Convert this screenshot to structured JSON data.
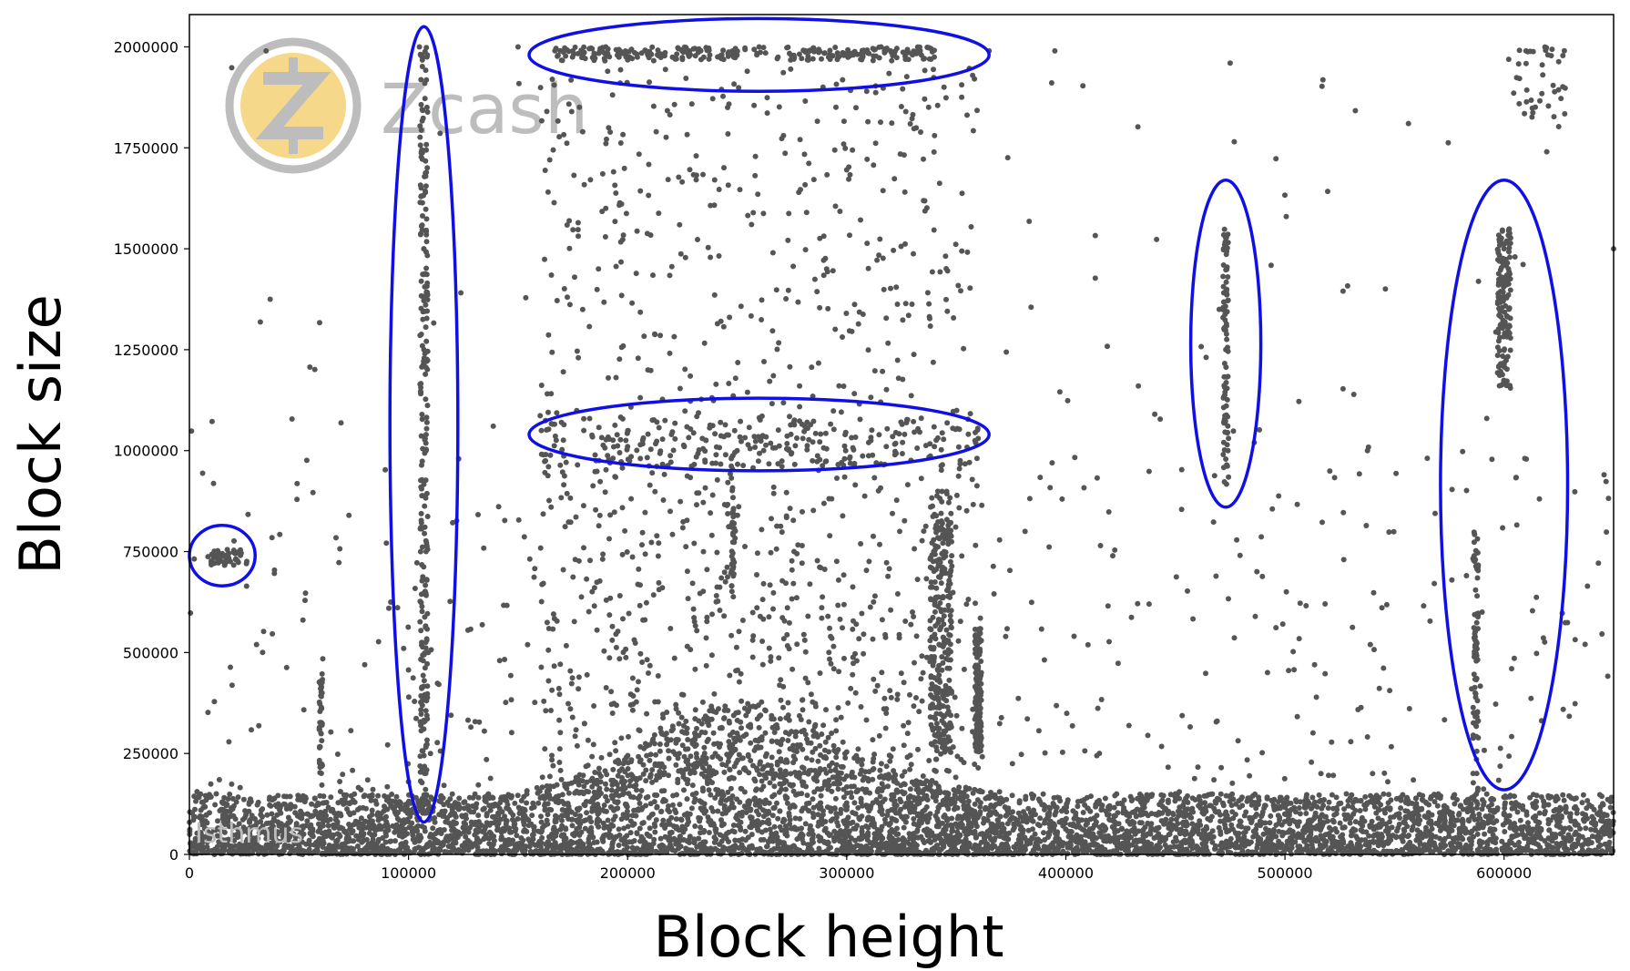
{
  "chart_data": {
    "type": "scatter",
    "title": "",
    "xlabel": "Block height",
    "ylabel": "Block size",
    "xlim": [
      0,
      650000
    ],
    "ylim": [
      0,
      2080000
    ],
    "x_ticks": [
      0,
      100000,
      200000,
      300000,
      400000,
      500000,
      600000
    ],
    "x_tick_labels": [
      "0",
      "100000",
      "200000",
      "300000",
      "400000",
      "500000",
      "600000"
    ],
    "y_ticks": [
      0,
      250000,
      500000,
      750000,
      1000000,
      1250000,
      1500000,
      1750000,
      2000000
    ],
    "y_tick_labels": [
      "0",
      "250000",
      "500000",
      "750000",
      "1000000",
      "1250000",
      "1500000",
      "1750000",
      "2000000"
    ],
    "grid": false,
    "legend": "none",
    "point_color": "#555555",
    "highlight_color": "#1010e6",
    "watermark": {
      "text": "Zcash",
      "coin_color": "#f5d889",
      "ring_color": "#bdbdbd"
    },
    "credit": "Isthmus",
    "sample_points": [
      [
        5000,
        95000
      ],
      [
        12000,
        740000
      ],
      [
        15000,
        745000
      ],
      [
        18000,
        730000
      ],
      [
        22000,
        748000
      ],
      [
        26000,
        720000
      ],
      [
        35000,
        1990000
      ],
      [
        60000,
        420000
      ],
      [
        60000,
        300000
      ],
      [
        80000,
        470000
      ],
      [
        100000,
        180000
      ],
      [
        105000,
        2000000
      ],
      [
        106000,
        1980000
      ],
      [
        107000,
        1500000
      ],
      [
        107000,
        1250000
      ],
      [
        108000,
        1000000
      ],
      [
        108000,
        750000
      ],
      [
        109000,
        500000
      ],
      [
        110000,
        250000
      ],
      [
        150000,
        2000000
      ],
      [
        175000,
        1990000
      ],
      [
        190000,
        2000000
      ],
      [
        210000,
        1980000
      ],
      [
        230000,
        1995000
      ],
      [
        260000,
        2000000
      ],
      [
        290000,
        1985000
      ],
      [
        320000,
        1990000
      ],
      [
        335000,
        1970000
      ],
      [
        180000,
        1050000
      ],
      [
        200000,
        1010000
      ],
      [
        220000,
        1040000
      ],
      [
        250000,
        1000000
      ],
      [
        280000,
        1030000
      ],
      [
        310000,
        1020000
      ],
      [
        340000,
        1010000
      ],
      [
        360000,
        1030000
      ],
      [
        240000,
        250000
      ],
      [
        250000,
        300000
      ],
      [
        270000,
        280000
      ],
      [
        330000,
        600000
      ],
      [
        345000,
        800000
      ],
      [
        360000,
        500000
      ],
      [
        365000,
        1990000
      ],
      [
        395000,
        1990000
      ],
      [
        472000,
        1500000
      ],
      [
        473000,
        1250000
      ],
      [
        474000,
        1000000
      ],
      [
        475000,
        1960000
      ],
      [
        470000,
        1350000
      ],
      [
        600000,
        1500000
      ],
      [
        602000,
        1450000
      ],
      [
        598000,
        1350000
      ],
      [
        605000,
        1480000
      ],
      [
        590000,
        600000
      ],
      [
        610000,
        1990000
      ],
      [
        620000,
        1980000
      ],
      [
        650000,
        1500000
      ],
      [
        540000,
        200000
      ],
      [
        450000,
        150000
      ],
      [
        420000,
        120000
      ],
      [
        500000,
        100000
      ]
    ],
    "annotations": [
      {
        "shape": "ellipse",
        "cx": 15000,
        "cy": 740000,
        "rx": 15000,
        "ry": 75000
      },
      {
        "shape": "ellipse",
        "cx": 107000,
        "cy": 1065000,
        "rx": 15500,
        "ry": 985000
      },
      {
        "shape": "ellipse",
        "cx": 260000,
        "cy": 1980000,
        "rx": 105000,
        "ry": 90000
      },
      {
        "shape": "ellipse",
        "cx": 260000,
        "cy": 1040000,
        "rx": 105000,
        "ry": 90000
      },
      {
        "shape": "ellipse",
        "cx": 473000,
        "cy": 1265000,
        "rx": 16000,
        "ry": 405000
      },
      {
        "shape": "ellipse",
        "cx": 600000,
        "cy": 915000,
        "rx": 29000,
        "ry": 755000
      }
    ]
  }
}
